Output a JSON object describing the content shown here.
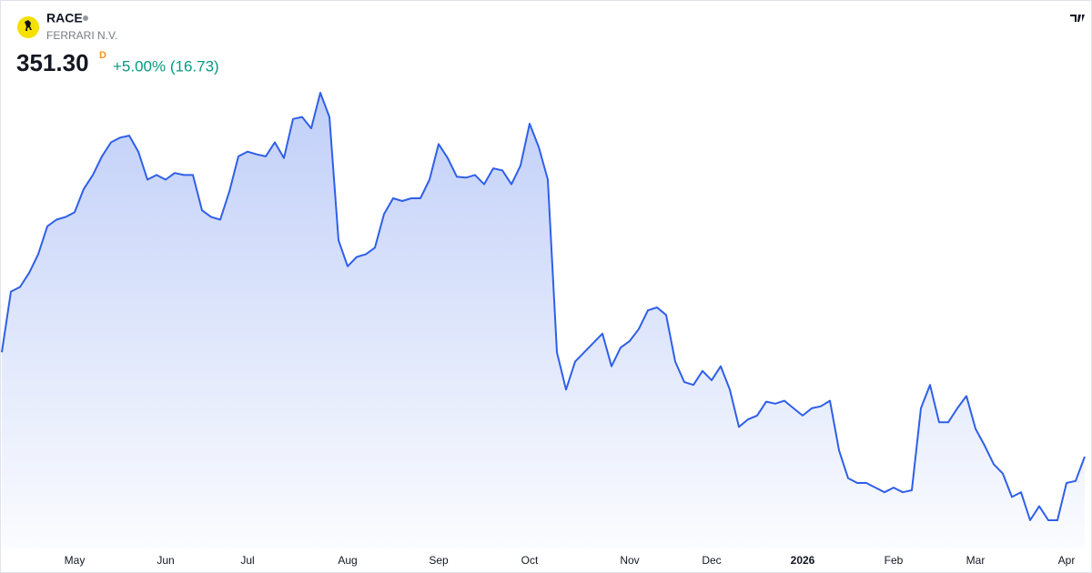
{
  "header": {
    "symbol": "RACE",
    "name": "FERRARI N.V.",
    "price": "351.30",
    "price_flag": "D",
    "change": "+5.00% (16.73)"
  },
  "chart_data": {
    "type": "area",
    "categories": [
      null,
      null,
      null,
      null,
      null,
      null,
      null,
      null,
      "May",
      null,
      null,
      null,
      null,
      null,
      null,
      null,
      null,
      null,
      "Jun",
      null,
      null,
      null,
      null,
      null,
      null,
      null,
      null,
      "Jul",
      null,
      null,
      null,
      null,
      null,
      null,
      null,
      null,
      null,
      null,
      "Aug",
      null,
      null,
      null,
      null,
      null,
      null,
      null,
      null,
      null,
      "Sep",
      null,
      null,
      null,
      null,
      null,
      null,
      null,
      null,
      null,
      "Oct",
      null,
      null,
      null,
      null,
      null,
      null,
      null,
      null,
      null,
      null,
      "Nov",
      null,
      null,
      null,
      null,
      null,
      null,
      null,
      null,
      "Dec",
      null,
      null,
      null,
      null,
      null,
      null,
      null,
      null,
      null,
      "2026",
      null,
      null,
      null,
      null,
      null,
      null,
      null,
      null,
      null,
      "Feb",
      null,
      null,
      null,
      null,
      null,
      null,
      null,
      null,
      "Mar",
      null,
      null,
      null,
      null,
      null,
      null,
      null,
      null,
      null,
      "Apr",
      null,
      null
    ],
    "series": [
      {
        "color": "#2f5fe8",
        "values": [
          398.3,
          425.6,
          427.7,
          434.0,
          442.4,
          455.0,
          458.0,
          459.2,
          461.3,
          471.8,
          478.1,
          486.5,
          492.8,
          494.9,
          495.8,
          488.6,
          476.0,
          478.1,
          476.0,
          479.0,
          478.1,
          478.1,
          462.2,
          459.2,
          458.0,
          470.6,
          486.5,
          488.6,
          487.4,
          486.5,
          492.8,
          485.7,
          503.3,
          504.2,
          499.1,
          515.1,
          504.2,
          448.7,
          437.0,
          441.2,
          442.4,
          445.4,
          460.5,
          467.6,
          466.4,
          467.6,
          467.6,
          476.0,
          492.0,
          485.7,
          477.3,
          476.9,
          478.1,
          473.9,
          481.1,
          480.2,
          473.9,
          482.3,
          501.2,
          490.7,
          476.0,
          398.3,
          381.5,
          394.1,
          398.3,
          402.5,
          406.7,
          392.0,
          400.4,
          403.4,
          408.8,
          417.2,
          418.5,
          415.1,
          394.1,
          384.9,
          383.6,
          389.9,
          385.7,
          392.0,
          381.5,
          364.7,
          368.1,
          369.8,
          376.1,
          375.2,
          376.5,
          373.1,
          369.8,
          373.1,
          374.0,
          376.5,
          354.2,
          341.6,
          339.5,
          339.5,
          337.4,
          335.3,
          337.4,
          335.3,
          336.2,
          373.1,
          383.6,
          366.8,
          366.8,
          373.1,
          378.6,
          363.9,
          356.3,
          347.9,
          343.7,
          333.2,
          335.3,
          322.7,
          329.0,
          322.7,
          322.7,
          339.5,
          340.4,
          351.3
        ]
      }
    ]
  }
}
